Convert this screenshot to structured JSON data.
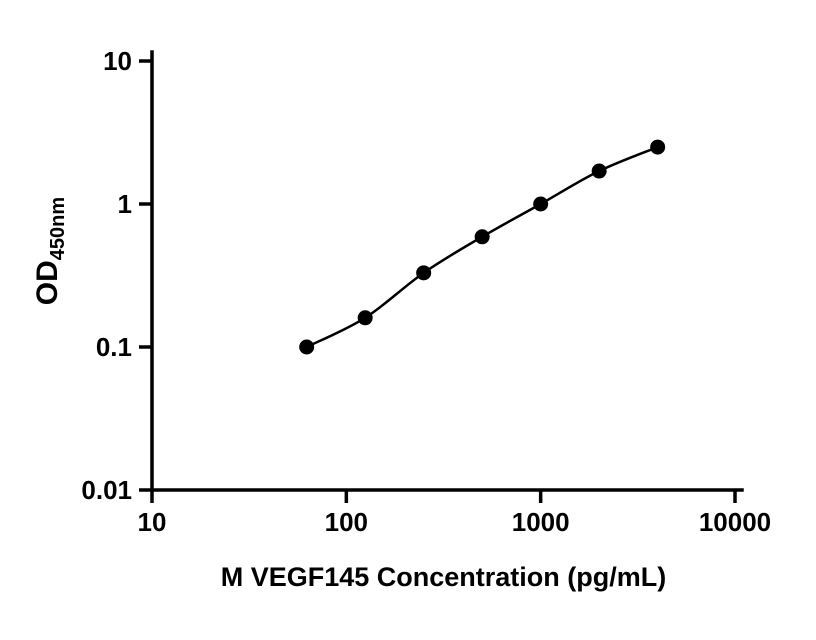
{
  "chart_data": {
    "type": "scatter",
    "title": "",
    "xlabel": "M VEGF145 Concentration (pg/mL)",
    "ylabel_main": "OD",
    "ylabel_sub": "450nm",
    "x_scale": "log",
    "y_scale": "log",
    "xlim": [
      10,
      10000
    ],
    "ylim": [
      0.01,
      10
    ],
    "x_ticks": [
      10,
      100,
      1000,
      10000
    ],
    "x_tick_labels": [
      "10",
      "100",
      "1000",
      "10000"
    ],
    "y_ticks": [
      10,
      1,
      0.1,
      0.01
    ],
    "y_tick_labels": [
      "10",
      "1",
      "0.1",
      "0.01"
    ],
    "x": [
      62.5,
      125,
      250,
      500,
      1000,
      2000,
      4000
    ],
    "y": [
      0.1,
      0.16,
      0.33,
      0.59,
      1.0,
      1.7,
      2.5
    ],
    "grid": "off",
    "legend": "none",
    "marker_color": "#000000",
    "line_color": "#000000",
    "axis_color": "#000000",
    "background": "#ffffff"
  }
}
